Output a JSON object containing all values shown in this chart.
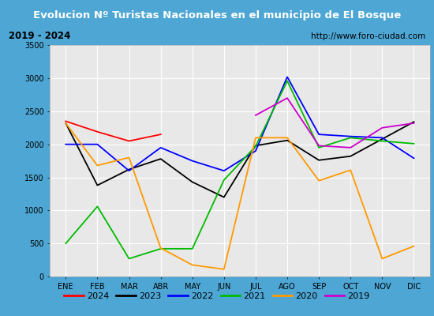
{
  "title": "Evolucion Nº Turistas Nacionales en el municipio de El Bosque",
  "subtitle_left": "2019 - 2024",
  "subtitle_right": "http://www.foro-ciudad.com",
  "months": [
    "ENE",
    "FEB",
    "MAR",
    "ABR",
    "MAY",
    "JUN",
    "JUL",
    "AGO",
    "SEP",
    "OCT",
    "NOV",
    "DIC"
  ],
  "series": {
    "2024": [
      2350,
      2190,
      2050,
      2150,
      null,
      null,
      null,
      null,
      null,
      null,
      null,
      null
    ],
    "2023": [
      2320,
      1380,
      1620,
      1780,
      1430,
      1200,
      1980,
      2060,
      1760,
      1820,
      2080,
      2340
    ],
    "2022": [
      2000,
      2000,
      1600,
      1950,
      1750,
      1600,
      1900,
      3020,
      2150,
      2120,
      2100,
      1790
    ],
    "2021": [
      500,
      1060,
      270,
      420,
      420,
      1460,
      1970,
      2960,
      1950,
      2100,
      2050,
      2010
    ],
    "2020": [
      2320,
      1680,
      1800,
      430,
      175,
      110,
      2100,
      2100,
      1450,
      1610,
      270,
      460
    ],
    "2019": [
      null,
      null,
      null,
      null,
      null,
      null,
      2440,
      2700,
      1980,
      1950,
      2250,
      2320
    ]
  },
  "colors": {
    "2024": "#ff0000",
    "2023": "#000000",
    "2022": "#0000ff",
    "2021": "#00bb00",
    "2020": "#ff9900",
    "2019": "#cc00cc"
  },
  "ylim": [
    0,
    3500
  ],
  "yticks": [
    0,
    500,
    1000,
    1500,
    2000,
    2500,
    3000,
    3500
  ],
  "title_bg_color": "#4da6d4",
  "title_text_color": "#ffffff",
  "subtitle_bg_color": "#e8e8e8",
  "plot_bg_color": "#e8e8e8",
  "grid_color": "#ffffff",
  "outer_bg_color": "#4da6d4",
  "figsize": [
    5.5,
    4.0
  ],
  "dpi": 100
}
